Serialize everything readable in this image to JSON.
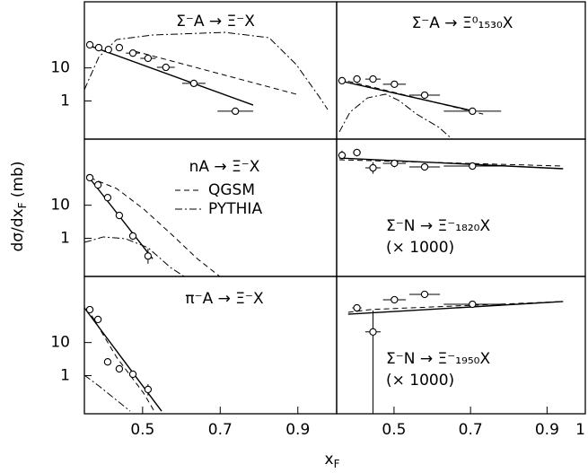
{
  "figure": {
    "ylabel": [
      "dσ/dx",
      "F",
      " (mb)"
    ],
    "xlabel": [
      "x",
      "F"
    ]
  },
  "chart_data": [
    {
      "type": "scatter",
      "title": "Σ⁻A → Ξ⁻X",
      "log_y": true,
      "xlim": [
        0.35,
        1.0
      ],
      "ylim": [
        0.07,
        1000
      ],
      "yticks": [
        1,
        10
      ],
      "points": {
        "x": [
          0.364,
          0.387,
          0.412,
          0.44,
          0.475,
          0.514,
          0.56,
          0.632,
          0.739
        ],
        "y": [
          50,
          41,
          36,
          41,
          28,
          19.5,
          10.4,
          3.4,
          0.49
        ],
        "xerr": [
          0.008,
          0.008,
          0.008,
          0.008,
          0.018,
          0.02,
          0.023,
          0.03,
          0.046
        ],
        "ylo": [
          46,
          38,
          33,
          37,
          25,
          17.5,
          9.3,
          3.0,
          0.42
        ],
        "yhi": [
          54,
          44,
          39,
          45,
          31,
          21.5,
          11.5,
          3.8,
          0.56
        ]
      },
      "lines": [
        {
          "style": "solid",
          "x": [
            0.357,
            0.785
          ],
          "y": [
            50,
            0.75
          ]
        },
        {
          "style": "dashed",
          "x": [
            0.48,
            0.896
          ],
          "y": [
            32,
            1.6
          ]
        },
        {
          "style": "dashdot",
          "x": [
            0.35,
            0.387,
            0.433,
            0.526,
            0.711,
            0.826,
            0.896,
            0.954,
            0.977
          ],
          "y": [
            2.2,
            21,
            72,
            99,
            119,
            82,
            12.6,
            1.4,
            0.55
          ]
        }
      ]
    },
    {
      "type": "scatter",
      "title": "Σ⁻A → Ξ⁰₁₅₃₀X",
      "log_y": true,
      "xlim": [
        0.35,
        1.0
      ],
      "ylim": [
        0.07,
        1000
      ],
      "points": {
        "x": [
          0.364,
          0.403,
          0.445,
          0.501,
          0.58,
          0.705
        ],
        "y": [
          4.1,
          4.6,
          4.6,
          3.2,
          1.5,
          0.49
        ],
        "xerr": [
          0.01,
          0.01,
          0.02,
          0.03,
          0.04,
          0.075
        ],
        "ylo": [
          3.6,
          4.0,
          4.0,
          2.8,
          1.3,
          0.43
        ],
        "yhi": [
          4.6,
          5.2,
          5.3,
          3.6,
          1.7,
          0.56
        ]
      },
      "lines": [
        {
          "style": "solid",
          "x": [
            0.357,
            0.71
          ],
          "y": [
            4.1,
            0.49
          ]
        },
        {
          "style": "dashed",
          "x": [
            0.357,
            0.733
          ],
          "y": [
            4.6,
            0.4
          ]
        },
        {
          "style": "dashdot",
          "x": [
            0.357,
            0.385,
            0.431,
            0.478,
            0.513,
            0.559,
            0.617,
            0.652
          ],
          "y": [
            0.115,
            0.46,
            1.24,
            1.6,
            1.03,
            0.4,
            0.16,
            0.07
          ]
        }
      ]
    },
    {
      "type": "scatter",
      "title": "nA → Ξ⁻X",
      "log_y": true,
      "xlim": [
        0.35,
        1.0
      ],
      "ylim": [
        0.07,
        1000
      ],
      "yticks": [
        1,
        10
      ],
      "legend": [
        {
          "label": "QGSM",
          "style": "dashed"
        },
        {
          "label": "PYTHIA",
          "style": "dashdot"
        }
      ],
      "points": {
        "x": [
          0.364,
          0.385,
          0.41,
          0.44,
          0.475,
          0.514
        ],
        "y": [
          68,
          41,
          17,
          4.9,
          1.17,
          0.29
        ],
        "xerr": [
          0.008,
          0.008,
          0.008,
          0.008,
          0.008,
          0.008
        ],
        "ylo": [
          61,
          37,
          15,
          4.3,
          0.9,
          0.17
        ],
        "yhi": [
          76,
          46,
          19,
          5.6,
          1.5,
          0.48
        ]
      },
      "lines": [
        {
          "style": "solid",
          "x": [
            0.357,
            0.526
          ],
          "y": [
            82,
            0.24
          ]
        },
        {
          "style": "dashed",
          "x": [
            0.364,
            0.433,
            0.503,
            0.572,
            0.641,
            0.699
          ],
          "y": [
            68,
            32,
            7.6,
            1.4,
            0.24,
            0.07
          ]
        },
        {
          "style": "dashdot",
          "x": [
            0.35,
            0.399,
            0.456,
            0.514,
            0.572,
            0.607
          ],
          "y": [
            0.75,
            1.1,
            0.97,
            0.52,
            0.13,
            0.07
          ]
        }
      ]
    },
    {
      "type": "scatter",
      "title": "Σ⁻N → Ξ⁻₁₈₂₀X",
      "note": "(× 1000)",
      "log_y": true,
      "xlim": [
        0.35,
        1.0
      ],
      "ylim": [
        0.07,
        1000
      ],
      "points": {
        "x": [
          0.364,
          0.403,
          0.445,
          0.501,
          0.58,
          0.705
        ],
        "y": [
          324,
          392,
          135,
          185,
          144,
          153
        ],
        "xerr": [
          0.01,
          0.01,
          0.02,
          0.03,
          0.04,
          0.075
        ],
        "ylo": [
          230,
          300,
          90,
          140,
          115,
          125
        ],
        "yhi": [
          450,
          510,
          200,
          240,
          180,
          185
        ]
      },
      "lines": [
        {
          "style": "solid",
          "x": [
            0.357,
            0.942
          ],
          "y": [
            269,
            127
          ]
        },
        {
          "style": "dashed",
          "x": [
            0.357,
            0.942
          ],
          "y": [
            237,
            153
          ]
        }
      ]
    },
    {
      "type": "scatter",
      "title": "π⁻A → Ξ⁻X",
      "log_y": true,
      "xlim": [
        0.35,
        1.0
      ],
      "ylim": [
        0.07,
        1000
      ],
      "yticks": [
        1,
        10
      ],
      "xticks": [
        0.5,
        0.7,
        0.9
      ],
      "points": {
        "x": [
          0.364,
          0.385,
          0.41,
          0.44,
          0.475,
          0.514
        ],
        "y": [
          99,
          50,
          2.6,
          1.6,
          1.1,
          0.38
        ],
        "xerr": [
          0.006,
          0.006,
          0.006,
          0.006,
          0.006,
          0.006
        ],
        "ylo": [
          88,
          45,
          2.3,
          1.4,
          0.95,
          0.25
        ],
        "yhi": [
          110,
          56,
          2.9,
          1.8,
          1.25,
          0.55
        ]
      },
      "lines": [
        {
          "style": "solid",
          "x": [
            0.35,
            0.549
          ],
          "y": [
            112,
            0.084
          ]
        },
        {
          "style": "dashed",
          "x": [
            0.357,
            0.433,
            0.503,
            0.53
          ],
          "y": [
            112,
            3.6,
            0.29,
            0.084
          ]
        },
        {
          "style": "dashdot",
          "x": [
            0.35,
            0.387,
            0.433,
            0.468
          ],
          "y": [
            1.03,
            0.49,
            0.18,
            0.084
          ]
        }
      ]
    },
    {
      "type": "scatter",
      "title": "Σ⁻N → Ξ⁻₁₉₅₀X",
      "note": "(× 1000)",
      "log_y": true,
      "xlim": [
        0.35,
        1.0
      ],
      "ylim": [
        0.07,
        1000
      ],
      "xticks": [
        0.5,
        0.7,
        0.9,
        1
      ],
      "points": {
        "x": [
          0.403,
          0.445,
          0.501,
          0.58,
          0.705
        ],
        "y": [
          112,
          21,
          197,
          287,
          144
        ],
        "xerr": [
          0.012,
          0.02,
          0.03,
          0.04,
          0.075
        ],
        "ylo": [
          85,
          0.07,
          160,
          250,
          125
        ],
        "yhi": [
          140,
          93,
          240,
          330,
          165
        ]
      },
      "lines": [
        {
          "style": "solid",
          "x": [
            0.38,
            0.942
          ],
          "y": [
            72,
            174
          ]
        },
        {
          "style": "dashed",
          "x": [
            0.38,
            0.44,
            0.942
          ],
          "y": [
            82,
            100,
            174
          ]
        }
      ]
    }
  ]
}
